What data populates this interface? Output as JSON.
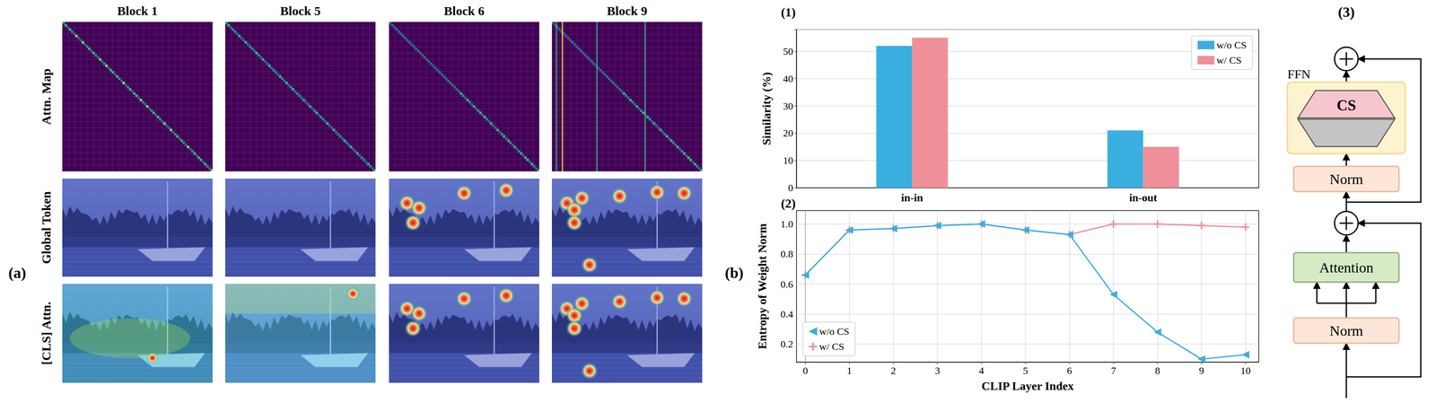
{
  "figure_a": {
    "label": "(a)",
    "columns": [
      "Block 1",
      "Block 5",
      "Block 6",
      "Block 9"
    ],
    "rows": [
      "Attn. Map",
      "Global Token",
      "[CLS] Attn."
    ]
  },
  "figure_b_label": "(b)",
  "chart_data": [
    {
      "type": "bar",
      "title": "(1)",
      "categories": [
        "in-in",
        "in-out"
      ],
      "series": [
        {
          "name": "w/o CS",
          "color": "#3aafe0",
          "values": [
            52,
            21
          ]
        },
        {
          "name": "w/ CS",
          "color": "#ef8f98",
          "values": [
            55,
            15
          ]
        }
      ],
      "ylabel": "Similarity (%)",
      "ylim": [
        0,
        58
      ],
      "yticks": [
        0,
        10,
        20,
        30,
        40,
        50
      ],
      "grid": true,
      "legend": "upper right"
    },
    {
      "type": "line",
      "title": "(2)",
      "x": [
        0,
        1,
        2,
        3,
        4,
        5,
        6,
        7,
        8,
        9,
        10
      ],
      "series": [
        {
          "name": "w/o CS",
          "color": "#3aafe0",
          "marker": "triangle-left",
          "values": [
            0.66,
            0.96,
            0.97,
            0.99,
            1.0,
            0.96,
            0.93,
            0.53,
            0.28,
            0.1,
            0.13
          ]
        },
        {
          "name": "w/ CS",
          "color": "#ef8f98",
          "marker": "plus",
          "values": [
            0.66,
            0.96,
            0.97,
            0.99,
            1.0,
            0.96,
            0.93,
            1.0,
            1.0,
            0.99,
            0.98
          ]
        }
      ],
      "xlabel": "CLIP Layer Index",
      "ylabel": "Entropy of Weight Norm",
      "xlim": [
        -0.2,
        10.3
      ],
      "xticks": [
        0,
        1,
        2,
        3,
        4,
        5,
        6,
        7,
        8,
        9,
        10
      ],
      "ylim": [
        0.08,
        1.09
      ],
      "yticks": [
        0.2,
        0.4,
        0.6,
        0.8,
        {
          "value": 1.0,
          "label": "1.0"
        }
      ],
      "grid": true,
      "legend": "lower left"
    }
  ],
  "diagram": {
    "label": "(3)",
    "ffn_label": "FFN",
    "ffn_inner": "CS",
    "nodes": [
      "Norm",
      "Attention",
      "Norm"
    ]
  }
}
